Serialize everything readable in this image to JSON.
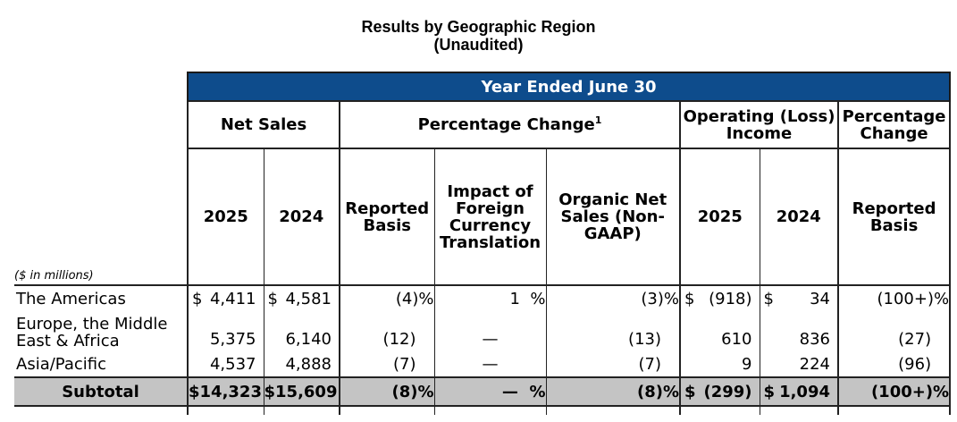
{
  "title": "Results by Geographic Region",
  "subtitle": "(Unaudited)",
  "header": {
    "period": "Year Ended June 30",
    "net_sales": "Net Sales",
    "pct_change": "Percentage Change",
    "pct_change_sup": "1",
    "op_income": "Operating (Loss) Income",
    "pct_change2": "Percentage Change",
    "units": "($ in millions)",
    "cols": {
      "ns2025": "2025",
      "ns2024": "2024",
      "reported": "Reported Basis",
      "fx": "Impact of Foreign Currency Translation",
      "organic": "Organic Net Sales (Non-GAAP)",
      "oi2025": "2025",
      "oi2024": "2024",
      "reported2": "Reported Basis"
    }
  },
  "rows": [
    {
      "label": "The Americas",
      "ns2025": "4,411",
      "ns2024": "4,581",
      "reported": "(4)",
      "fx": "1",
      "organic": "(3)",
      "oi2025": "(918)",
      "oi2024": "34",
      "reported2": "(100+)"
    },
    {
      "label": "Europe, the Middle East & Africa",
      "ns2025": "5,375",
      "ns2024": "6,140",
      "reported": "(12)",
      "fx": "—",
      "organic": "(13)",
      "oi2025": "610",
      "oi2024": "836",
      "reported2": "(27)"
    },
    {
      "label": "Asia/Pacific",
      "ns2025": "4,537",
      "ns2024": "4,888",
      "reported": "(7)",
      "fx": "—",
      "organic": "(7)",
      "oi2025": "9",
      "oi2024": "224",
      "reported2": "(96)"
    }
  ],
  "subtotal": {
    "label": "Subtotal",
    "ns2025": "$14,323",
    "ns2024": "$15,609",
    "reported": "(8)",
    "fx": "—",
    "organic": "(8)",
    "oi2025": "(299)",
    "oi2024": "1,094",
    "reported2": "(100+)"
  },
  "symbols": {
    "dollar": "$",
    "percent": "%"
  }
}
